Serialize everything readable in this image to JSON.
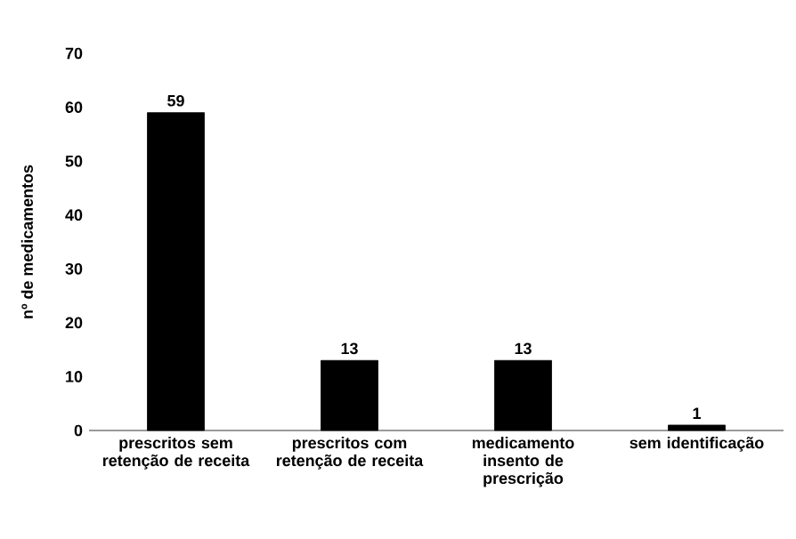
{
  "chart_data": {
    "type": "bar",
    "ylabel": "nº de medicamentos",
    "categories": [
      "prescritos sem retenção de receita",
      "prescritos com retenção de receita",
      "medicamento insento de prescrição",
      "sem identificação"
    ],
    "values": [
      59,
      13,
      13,
      1
    ],
    "color": "#000000",
    "ylim": [
      0,
      70
    ],
    "yticks": [
      0,
      10,
      20,
      30,
      40,
      50,
      60,
      70
    ],
    "data_labels": true
  }
}
